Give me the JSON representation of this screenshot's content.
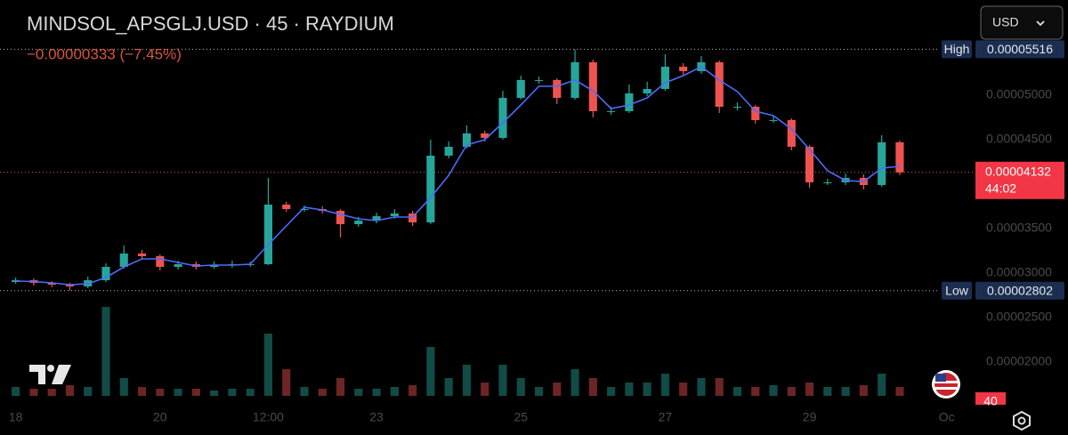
{
  "chart_data": {
    "type": "candlestick",
    "title": "MINDSOL_APSGLJ.USD · 45 · RAYDIUM",
    "subtitle": "−0.00000333 (−7.45%)",
    "currency": "USD",
    "open": [
      2.9e-05,
      2.92e-05,
      2.89e-05,
      2.87e-05,
      2.85e-05,
      2.92e-05,
      3.07e-05,
      3.22e-05,
      3.19e-05,
      3.07e-05,
      3.1e-05,
      3.07e-05,
      3.09e-05,
      3.1e-05,
      3.1e-05,
      3.77e-05,
      3.72e-05,
      3.72e-05,
      3.7e-05,
      3.55e-05,
      3.59e-05,
      3.64e-05,
      3.67e-05,
      3.57e-05,
      4.32e-05,
      4.42e-05,
      4.57e-05,
      4.52e-05,
      4.97e-05,
      5.17e-05,
      5.17e-05,
      4.97e-05,
      5.37e-05,
      4.82e-05,
      4.82e-05,
      5.02e-05,
      5.07e-05,
      5.32e-05,
      5.27e-05,
      5.37e-05,
      4.87e-05,
      4.87e-05,
      4.72e-05,
      4.72e-05,
      4.42e-05,
      4.02e-05,
      4.02e-05,
      4.07e-05,
      3.99e-05,
      4.47e-05
    ],
    "high": [
      2.95e-05,
      2.94e-05,
      2.91e-05,
      2.89e-05,
      2.96e-05,
      3.11e-05,
      3.31e-05,
      3.26e-05,
      3.21e-05,
      3.14e-05,
      3.13e-05,
      3.13e-05,
      3.14e-05,
      3.13e-05,
      4.07e-05,
      3.8e-05,
      3.76e-05,
      3.75e-05,
      3.72e-05,
      3.63e-05,
      3.68e-05,
      3.72e-05,
      3.7e-05,
      4.5e-05,
      4.48e-05,
      4.66e-05,
      4.6e-05,
      5.05e-05,
      5.22e-05,
      5.21e-05,
      5.19e-05,
      5.516e-05,
      5.4e-05,
      4.87e-05,
      5.12e-05,
      5.15e-05,
      5.46e-05,
      5.36e-05,
      5.44e-05,
      5.39e-05,
      4.92e-05,
      4.89e-05,
      4.76e-05,
      4.74e-05,
      4.44e-05,
      4.06e-05,
      4.12e-05,
      4.11e-05,
      4.55e-05,
      4.49e-05
    ],
    "low": [
      2.88e-05,
      2.86e-05,
      2.84e-05,
      2.802e-05,
      2.83e-05,
      2.9e-05,
      3.05e-05,
      3.15e-05,
      3.03e-05,
      3.04e-05,
      3.04e-05,
      3.05e-05,
      3.06e-05,
      3.07e-05,
      3.09e-05,
      3.69e-05,
      3.69e-05,
      3.67e-05,
      3.4e-05,
      3.52e-05,
      3.56e-05,
      3.61e-05,
      3.53e-05,
      3.55e-05,
      4.29e-05,
      4.4e-05,
      4.48e-05,
      4.5e-05,
      4.95e-05,
      5.13e-05,
      4.9e-05,
      4.95e-05,
      4.75e-05,
      4.78e-05,
      4.8e-05,
      4.99e-05,
      5.05e-05,
      5.23e-05,
      5.24e-05,
      4.8e-05,
      4.83e-05,
      4.68e-05,
      4.69e-05,
      4.38e-05,
      3.96e-05,
      3.99e-05,
      3.99e-05,
      3.94e-05,
      3.97e-05,
      4.1e-05
    ],
    "close": [
      2.92e-05,
      2.89e-05,
      2.87e-05,
      2.85e-05,
      2.92e-05,
      3.07e-05,
      3.22e-05,
      3.19e-05,
      3.07e-05,
      3.1e-05,
      3.07e-05,
      3.09e-05,
      3.1e-05,
      3.1e-05,
      3.77e-05,
      3.72e-05,
      3.72e-05,
      3.7e-05,
      3.55e-05,
      3.59e-05,
      3.64e-05,
      3.67e-05,
      3.57e-05,
      4.32e-05,
      4.42e-05,
      4.57e-05,
      4.52e-05,
      4.97e-05,
      5.17e-05,
      5.17e-05,
      4.97e-05,
      5.37e-05,
      4.82e-05,
      4.82e-05,
      5.02e-05,
      5.07e-05,
      5.32e-05,
      5.27e-05,
      5.37e-05,
      4.87e-05,
      4.87e-05,
      4.72e-05,
      4.72e-05,
      4.42e-05,
      4.02e-05,
      4.02e-05,
      4.07e-05,
      3.99e-05,
      4.47e-05,
      4.132e-05
    ],
    "ma": [
      2.91e-05,
      2.905e-05,
      2.89e-05,
      2.87e-05,
      2.88e-05,
      2.95e-05,
      3.07e-05,
      3.16e-05,
      3.16e-05,
      3.12e-05,
      3.08e-05,
      3.09e-05,
      3.09e-05,
      3.1e-05,
      3.32e-05,
      3.53e-05,
      3.74e-05,
      3.71e-05,
      3.66e-05,
      3.61e-05,
      3.59e-05,
      3.63e-05,
      3.63e-05,
      3.85e-05,
      4.1e-05,
      4.44e-05,
      4.5e-05,
      4.69e-05,
      4.89e-05,
      5.1e-05,
      5.1e-05,
      5.17e-05,
      5.05e-05,
      4.85e-05,
      4.89e-05,
      4.97e-05,
      5.14e-05,
      5.22e-05,
      5.32e-05,
      5.17e-05,
      5.04e-05,
      4.82e-05,
      4.77e-05,
      4.62e-05,
      4.39e-05,
      4.15e-05,
      4.04e-05,
      4.03e-05,
      4.18e-05,
      4.2e-05
    ],
    "ma_color": "#4d6bfe",
    "up_color": "#26a69a",
    "down_color": "#ef5350",
    "volume": [
      10,
      8,
      8,
      12,
      10,
      100,
      20,
      10,
      8,
      8,
      8,
      6,
      8,
      8,
      70,
      30,
      10,
      8,
      20,
      8,
      8,
      10,
      12,
      55,
      20,
      35,
      15,
      35,
      20,
      10,
      15,
      30,
      20,
      10,
      15,
      15,
      25,
      15,
      20,
      20,
      10,
      10,
      12,
      10,
      15,
      10,
      10,
      12,
      25,
      10
    ],
    "volume_lim": [
      0,
      110
    ],
    "ylim": [
      1.47e-05,
      6.07e-05
    ],
    "yticks": [
      {
        "value": 5e-05,
        "label": "0.00005000"
      },
      {
        "value": 4.5e-05,
        "label": "0.00004500"
      },
      {
        "value": 3.5e-05,
        "label": "0.00003500"
      },
      {
        "value": 3e-05,
        "label": "0.00003000"
      },
      {
        "value": 2.5e-05,
        "label": "0.00002500"
      },
      {
        "value": 2e-05,
        "label": "0.00002000"
      }
    ],
    "xlim": [
      -0.87,
      52.9
    ],
    "xticks": [
      {
        "value": 0,
        "label": "18"
      },
      {
        "value": 8,
        "label": "20"
      },
      {
        "value": 14,
        "label": "12:00"
      },
      {
        "value": 20,
        "label": "23"
      },
      {
        "value": 28,
        "label": "25"
      },
      {
        "value": 36,
        "label": "27"
      },
      {
        "value": 44,
        "label": "29"
      },
      {
        "value": 51.6,
        "label": "Oc"
      }
    ],
    "high_marker": {
      "name": "High",
      "value": 5.516e-05,
      "label": "0.00005516"
    },
    "low_marker": {
      "name": "Low",
      "value": 2.802e-05,
      "label": "0.00002802"
    },
    "last_price": {
      "value": 4.132e-05,
      "label": "0.00004132",
      "countdown": "44:02"
    },
    "volume_tag": "40"
  }
}
